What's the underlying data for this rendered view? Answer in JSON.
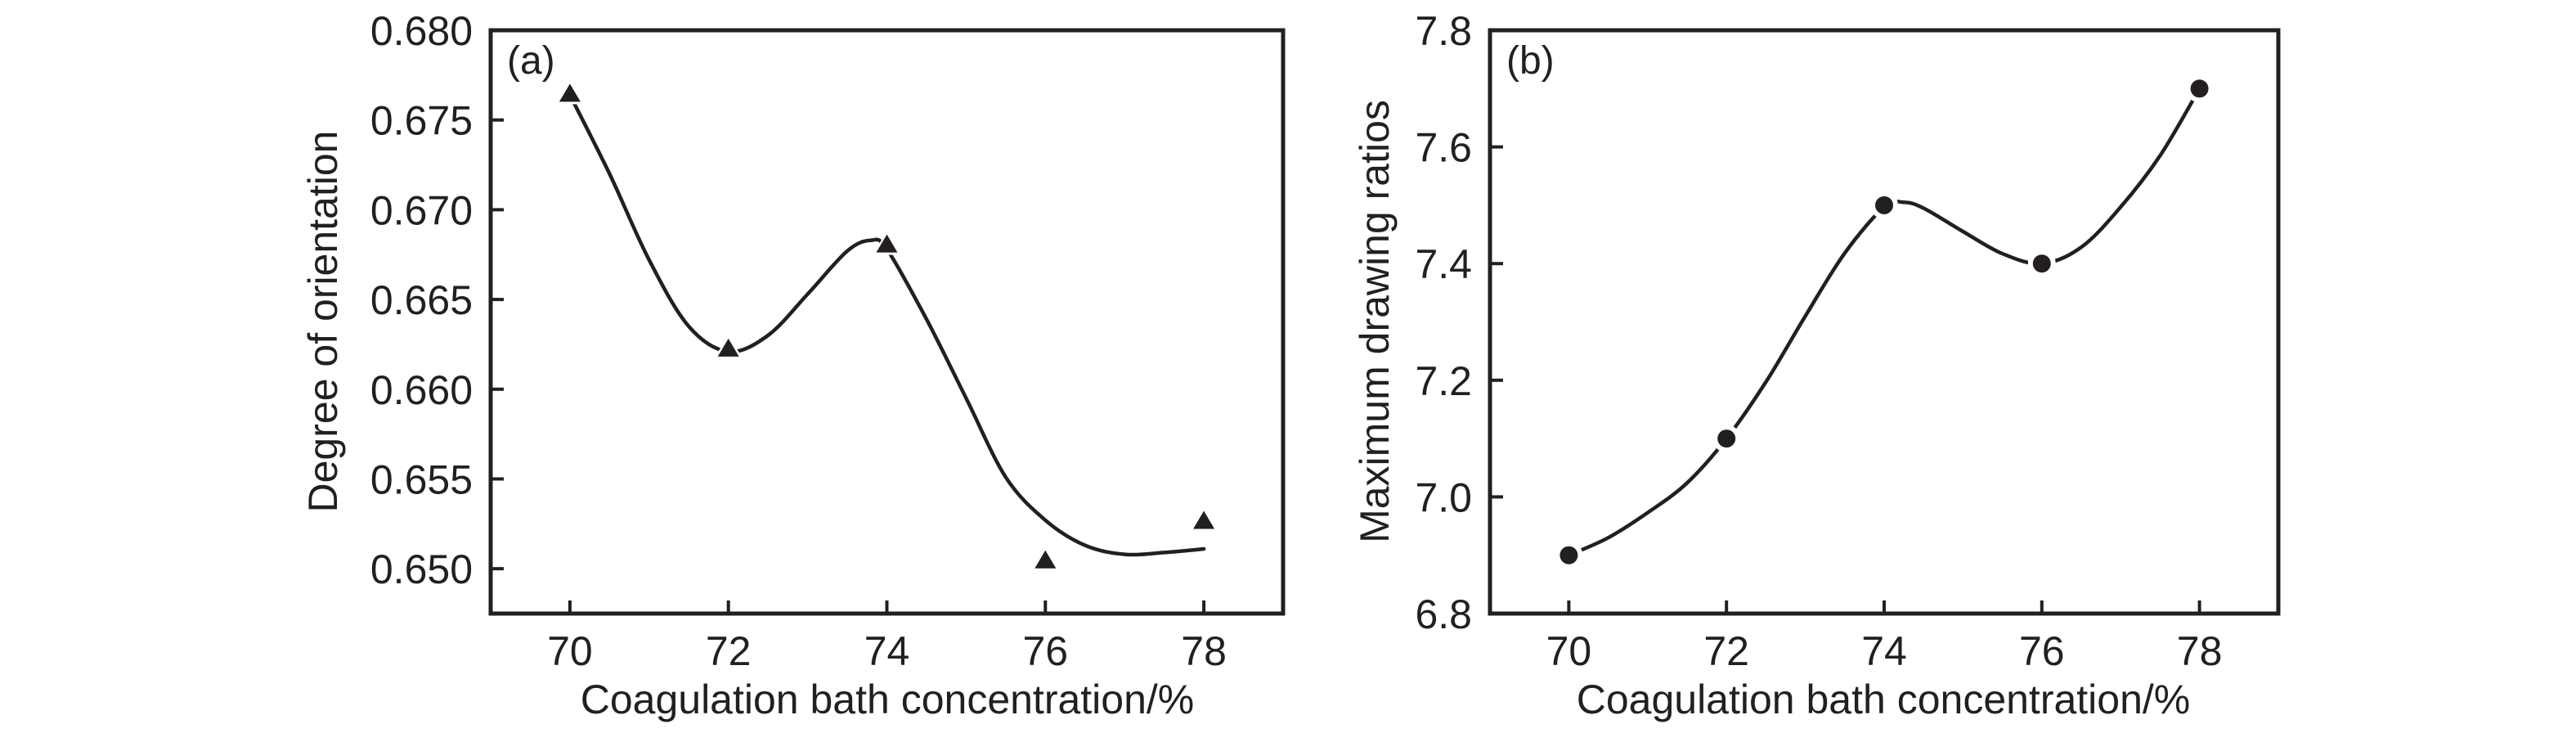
{
  "chart_data": [
    {
      "type": "scatter",
      "panel_tag": "(a)",
      "title": "",
      "xlabel": "Coagulation bath concentration/%",
      "ylabel": "Degree of orientation",
      "xlim": [
        69,
        79
      ],
      "ylim": [
        0.6475,
        0.68
      ],
      "x_ticks": [
        70,
        72,
        74,
        76,
        78
      ],
      "x_tick_labels": [
        "70",
        "72",
        "74",
        "76",
        "78"
      ],
      "y_ticks": [
        0.65,
        0.655,
        0.66,
        0.665,
        0.67,
        0.675,
        0.68
      ],
      "y_tick_labels": [
        "0.650",
        "0.655",
        "0.660",
        "0.665",
        "0.670",
        "0.675",
        "0.680"
      ],
      "grid": false,
      "marker": "triangle",
      "color": "#231f20",
      "series": [
        {
          "name": "Degree of orientation",
          "x": [
            70,
            72,
            74,
            76,
            78
          ],
          "y": [
            0.6764,
            0.6622,
            0.668,
            0.6504,
            0.6526
          ]
        }
      ],
      "fit_curve": {
        "x": [
          70,
          70.5,
          71,
          71.5,
          72,
          72.5,
          73,
          73.5,
          73.8,
          74,
          74.5,
          75,
          75.5,
          76,
          76.5,
          77,
          77.5,
          78
        ],
        "y": [
          0.6764,
          0.672,
          0.6672,
          0.6635,
          0.6621,
          0.663,
          0.6653,
          0.6677,
          0.6683,
          0.6678,
          0.6639,
          0.6595,
          0.6551,
          0.6527,
          0.6513,
          0.6508,
          0.6509,
          0.6511
        ]
      }
    },
    {
      "type": "scatter",
      "panel_tag": "(b)",
      "title": "",
      "xlabel": "Coagulation bath concentration/%",
      "ylabel": "Maximum drawing ratios",
      "xlim": [
        69,
        79
      ],
      "ylim": [
        6.8,
        7.8
      ],
      "x_ticks": [
        70,
        72,
        74,
        76,
        78
      ],
      "x_tick_labels": [
        "70",
        "72",
        "74",
        "76",
        "78"
      ],
      "y_ticks": [
        6.8,
        7.0,
        7.2,
        7.4,
        7.6,
        7.8
      ],
      "y_tick_labels": [
        "6.8",
        "7.0",
        "7.2",
        "7.4",
        "7.6",
        "7.8"
      ],
      "grid": false,
      "marker": "circle",
      "color": "#231f20",
      "series": [
        {
          "name": "Maximum drawing ratios",
          "x": [
            70,
            72,
            74,
            76,
            78
          ],
          "y": [
            6.9,
            7.1,
            7.5,
            7.4,
            7.7
          ]
        }
      ],
      "fit_curve": {
        "x": [
          70,
          70.5,
          71,
          71.5,
          72,
          72.5,
          73,
          73.5,
          74,
          74.25,
          74.5,
          75,
          75.5,
          76,
          76.5,
          77,
          77.5,
          78
        ],
        "y": [
          6.9,
          6.93,
          6.973,
          7.024,
          7.1,
          7.197,
          7.31,
          7.418,
          7.497,
          7.505,
          7.495,
          7.455,
          7.417,
          7.4,
          7.428,
          7.497,
          7.585,
          7.7
        ]
      }
    }
  ]
}
